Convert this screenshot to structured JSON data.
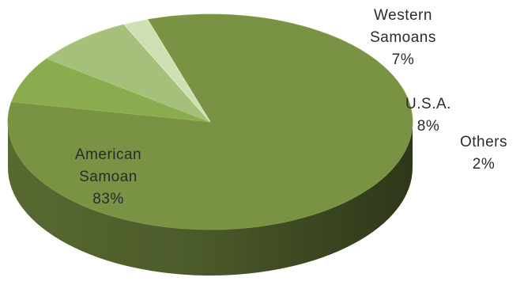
{
  "chart_data": {
    "type": "pie",
    "title": "",
    "style": "3d",
    "legend": "none",
    "slices": [
      {
        "label_lines": [
          "American",
          "Samoan"
        ],
        "value": 83,
        "value_label": "83%",
        "color": "#7a9244"
      },
      {
        "label_lines": [
          "Western",
          "Samoans"
        ],
        "value": 7,
        "value_label": "7%",
        "color": "#8aab4e"
      },
      {
        "label_lines": [
          "U.S.A."
        ],
        "value": 8,
        "value_label": "8%",
        "color": "#a4c07a"
      },
      {
        "label_lines": [
          "Others"
        ],
        "value": 2,
        "value_label": "2%",
        "color": "#cfdfb4"
      }
    ]
  }
}
